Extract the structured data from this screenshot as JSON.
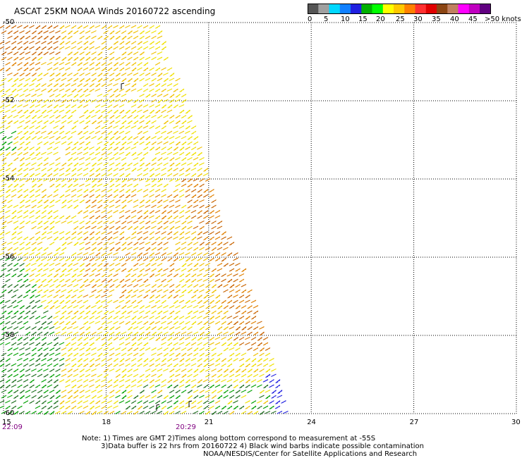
{
  "title": "ASCAT 25KM NOAA Winds 20160722 ascending",
  "colorbar": {
    "colors": [
      "#555555",
      "#a0a0a0",
      "#00d8ff",
      "#1080ff",
      "#2020e0",
      "#00b000",
      "#00ff00",
      "#ffff00",
      "#ffc800",
      "#ff8000",
      "#ff3030",
      "#e00000",
      "#8b4513",
      "#c08060",
      "#ff00ff",
      "#c000c0",
      "#600080"
    ],
    "labels": [
      "0",
      "5",
      "10",
      "15",
      "20",
      "25",
      "30",
      "35",
      "40",
      "45",
      ">50 knots"
    ]
  },
  "map": {
    "lat_labels": [
      "-50",
      "-52",
      "-54",
      "-56",
      "-58",
      "-60"
    ],
    "lon_labels": [
      "15",
      "18",
      "21",
      "24",
      "27",
      "30"
    ],
    "time_labels": [
      "22:09",
      "20:29"
    ],
    "lat_range": [
      -60,
      -50
    ],
    "lon_range": [
      15,
      30
    ],
    "grid": "dotted",
    "wind_barb_colors": {
      "yellow": "#f0e000",
      "gold": "#f0c000",
      "orange": "#e08000",
      "dark_orange": "#c86400",
      "green": "#00a000",
      "dark_green": "#207020",
      "blue": "#2020e0",
      "black": "#000000"
    }
  },
  "note": {
    "line1": "Note: 1) Times are GMT 2)Times along bottom correspond to measurement at -55S",
    "line2": "3)Data buffer is 22 hrs from 20160722 4) Black wind barbs indicate possible contamination",
    "line3": "NOAA/NESDIS/Center for Satellite Applications and Research"
  }
}
